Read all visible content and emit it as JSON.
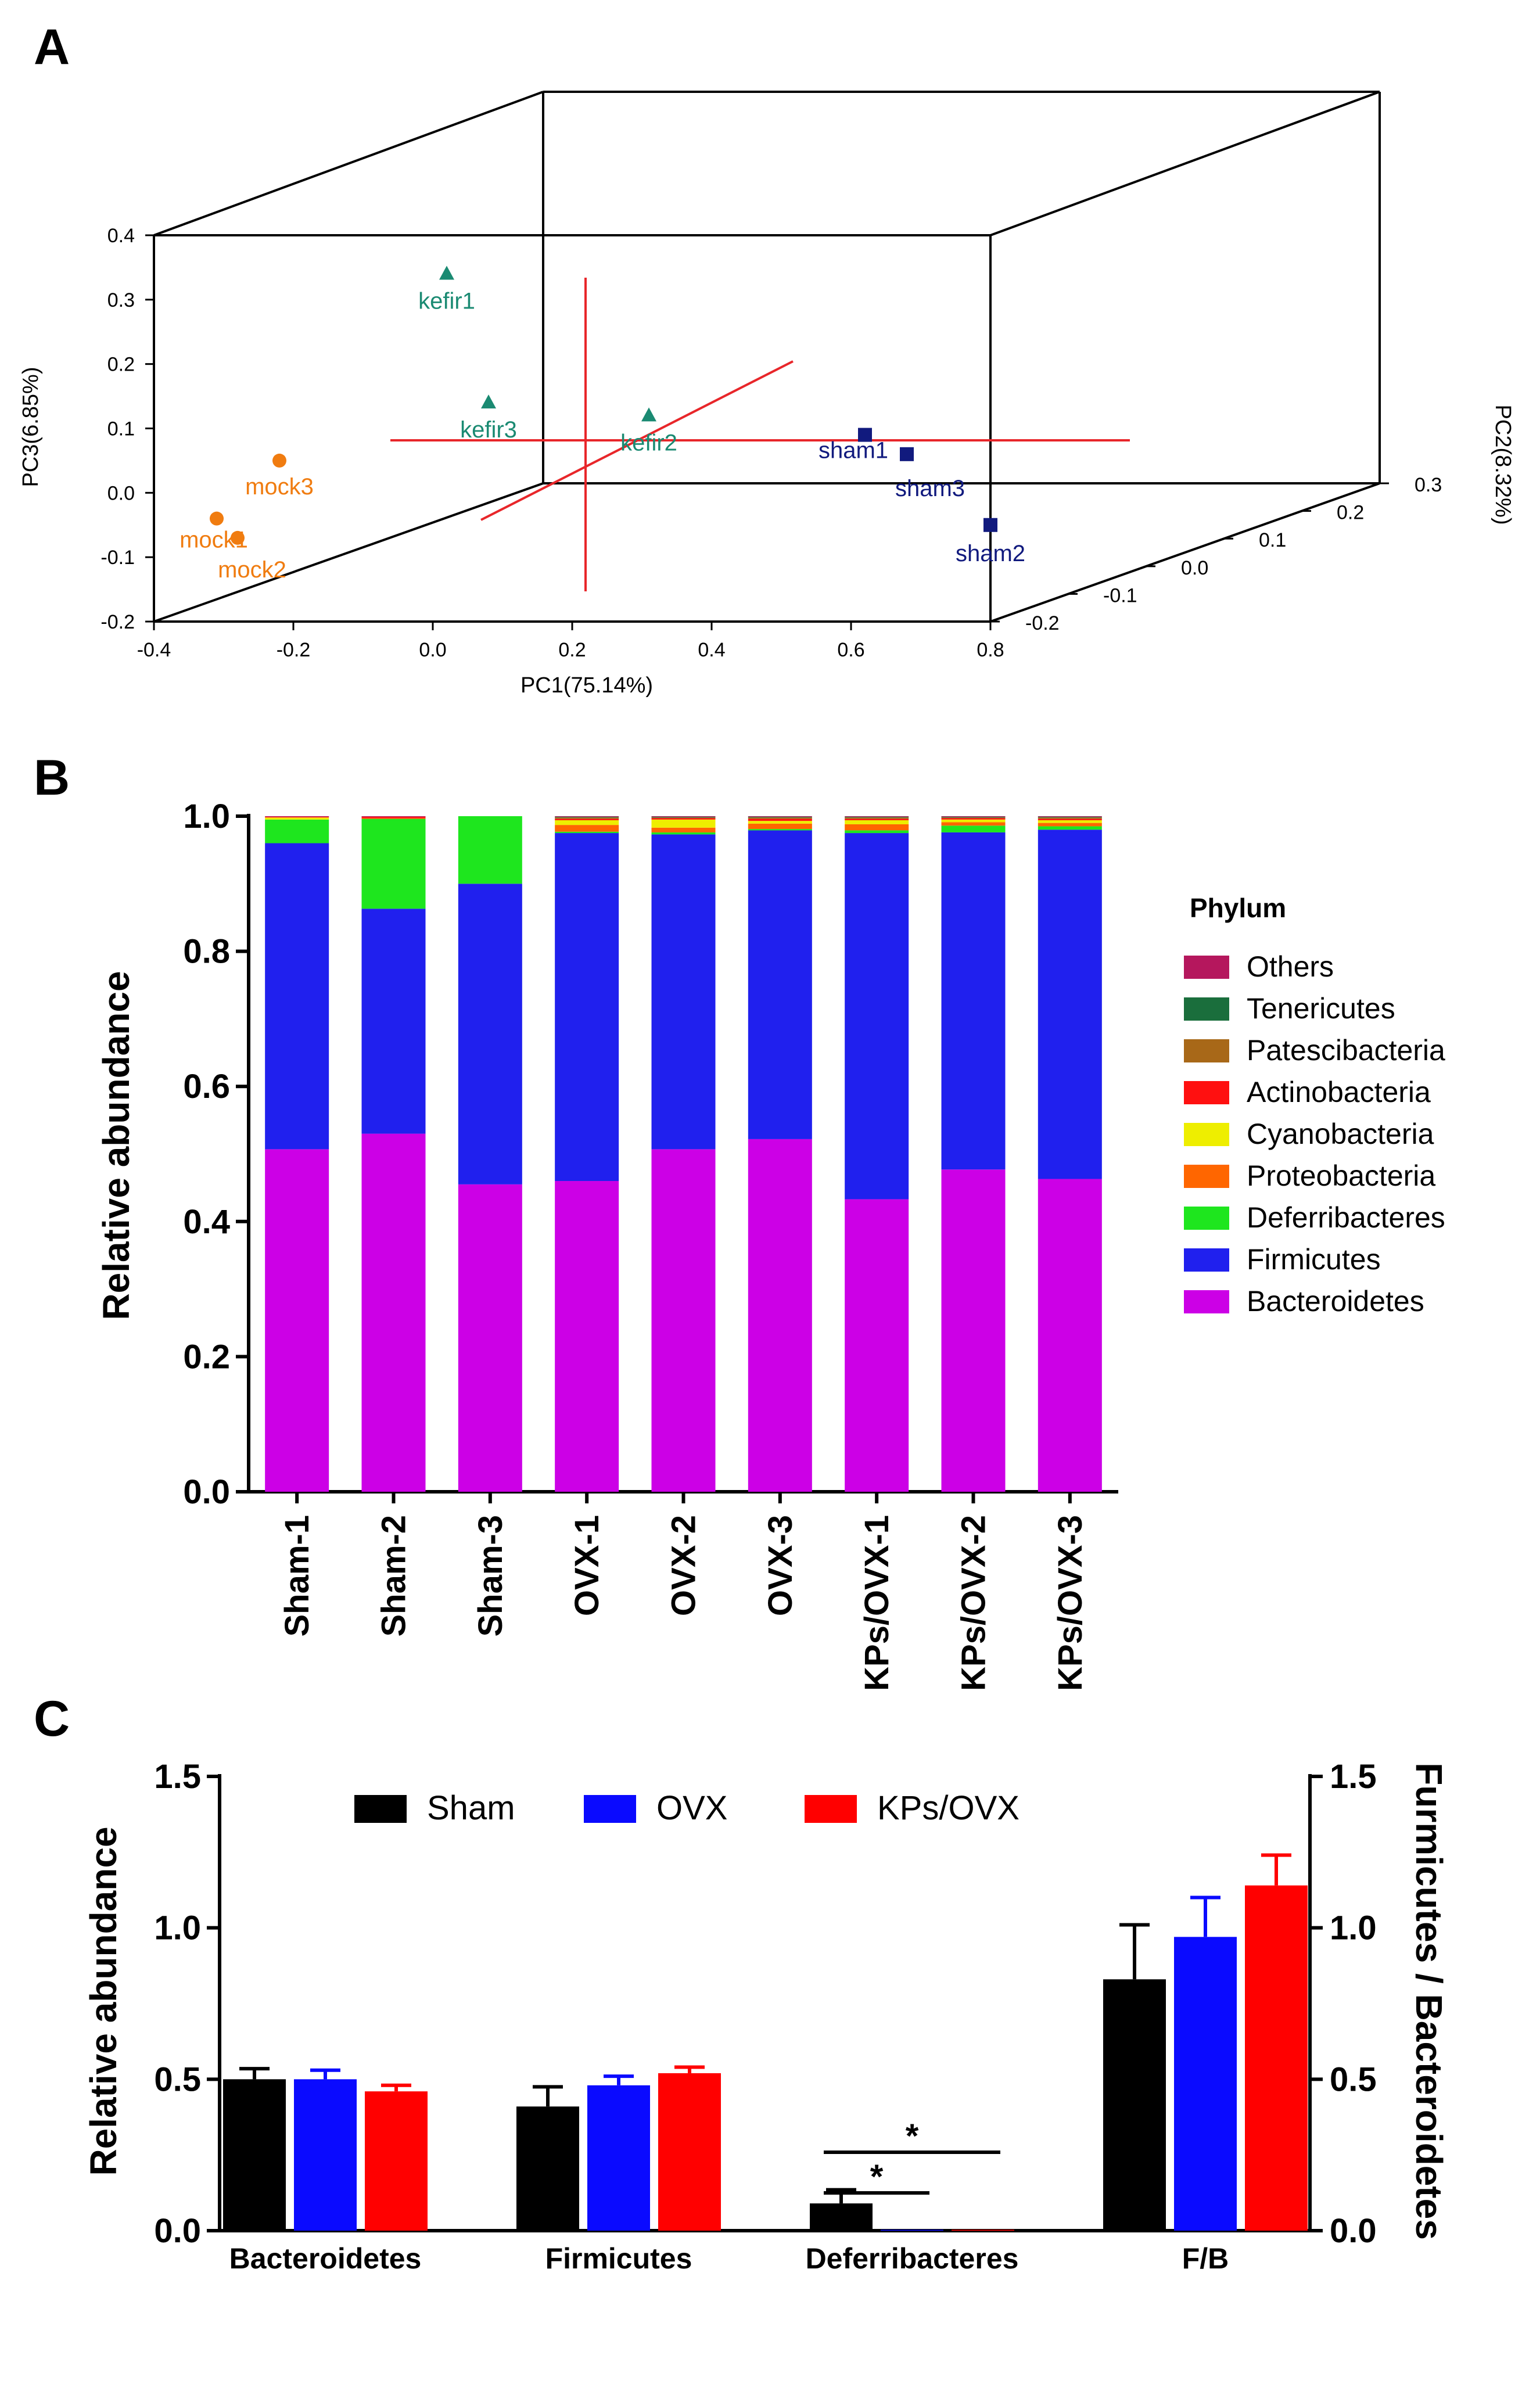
{
  "panels": {
    "a": "A",
    "b": "B",
    "c": "C"
  },
  "colors": {
    "kefir": "#1a8a72",
    "mock": "#f07c10",
    "sham": "#111a7e",
    "axis_red": "#e8262a"
  },
  "chart_data": [
    {
      "type": "scatter",
      "title": "",
      "xlabel": "PC1(75.14%)",
      "ylabel": "PC3(6.85%)",
      "zlabel": "PC2(8.32%)",
      "xticks": [
        "-0.4",
        "-0.2",
        "0.0",
        "0.2",
        "0.4",
        "0.6",
        "0.8"
      ],
      "yticks": [
        "-0.2",
        "-0.1",
        "0.0",
        "0.1",
        "0.2",
        "0.3",
        "0.4"
      ],
      "zticks": [
        "-0.2",
        "-0.1",
        "0.0",
        "0.1",
        "0.2",
        "0.3"
      ],
      "xlim": [
        -0.4,
        0.8
      ],
      "ylim": [
        -0.2,
        0.4
      ],
      "zlim": [
        -0.2,
        0.3
      ],
      "points": [
        {
          "label": "kefir1",
          "group": "kefir",
          "x": 0.02,
          "y": 0.34
        },
        {
          "label": "kefir3",
          "group": "kefir",
          "x": 0.08,
          "y": 0.14
        },
        {
          "label": "kefir2",
          "group": "kefir",
          "x": 0.31,
          "y": 0.12
        },
        {
          "label": "mock3",
          "group": "mock",
          "x": -0.22,
          "y": 0.05
        },
        {
          "label": "mock1",
          "group": "mock",
          "x": -0.31,
          "y": -0.04
        },
        {
          "label": "mock2",
          "group": "mock",
          "x": -0.28,
          "y": -0.07
        },
        {
          "label": "sham1",
          "group": "sham",
          "x": 0.62,
          "y": 0.09
        },
        {
          "label": "sham3",
          "group": "sham",
          "x": 0.68,
          "y": 0.06
        },
        {
          "label": "sham2",
          "group": "sham",
          "x": 0.8,
          "y": -0.05
        }
      ]
    },
    {
      "type": "bar",
      "stacked": true,
      "title": "",
      "xlabel": "",
      "ylabel": "Relative abundance",
      "ylim": [
        0,
        1.0
      ],
      "yticks": [
        "0.0",
        "0.2",
        "0.4",
        "0.6",
        "0.8",
        "1.0"
      ],
      "categories": [
        "Sham-1",
        "Sham-2",
        "Sham-3",
        "OVX-1",
        "OVX-2",
        "OVX-3",
        "KPs/OVX-1",
        "KPs/OVX-2",
        "KPs/OVX-3"
      ],
      "legend_title": "Phylum",
      "legend": [
        "Others",
        "Tenericutes",
        "Patescibacteria",
        "Actinobacteria",
        "Cyanobacteria",
        "Proteobacteria",
        "Deferribacteres",
        "Firmicutes",
        "Bacteroidetes"
      ],
      "series": [
        {
          "name": "Bacteroidetes",
          "color": "#cc00e6",
          "values": [
            0.507,
            0.53,
            0.455,
            0.46,
            0.507,
            0.522,
            0.433,
            0.477,
            0.463
          ]
        },
        {
          "name": "Firmicutes",
          "color": "#2020ee",
          "values": [
            0.453,
            0.333,
            0.445,
            0.515,
            0.466,
            0.457,
            0.542,
            0.499,
            0.517
          ]
        },
        {
          "name": "Deferribacteres",
          "color": "#1ee61e",
          "values": [
            0.035,
            0.133,
            0.1,
            0.002,
            0.003,
            0.002,
            0.004,
            0.01,
            0.005
          ]
        },
        {
          "name": "Proteobacteria",
          "color": "#ff6600",
          "values": [
            0.0,
            0.001,
            0.0,
            0.01,
            0.007,
            0.008,
            0.009,
            0.005,
            0.005
          ]
        },
        {
          "name": "Cyanobacteria",
          "color": "#eeee00",
          "values": [
            0.003,
            0.0,
            0.0,
            0.007,
            0.012,
            0.004,
            0.006,
            0.004,
            0.004
          ]
        },
        {
          "name": "Actinobacteria",
          "color": "#ff1010",
          "values": [
            0.001,
            0.002,
            0.0,
            0.002,
            0.002,
            0.003,
            0.002,
            0.002,
            0.002
          ]
        },
        {
          "name": "Patescibacteria",
          "color": "#a86818",
          "values": [
            0.0,
            0.0,
            0.0,
            0.002,
            0.001,
            0.002,
            0.002,
            0.001,
            0.002
          ]
        },
        {
          "name": "Tenericutes",
          "color": "#1a6e3c",
          "values": [
            0.0,
            0.0,
            0.0,
            0.001,
            0.001,
            0.001,
            0.001,
            0.001,
            0.001
          ]
        },
        {
          "name": "Others",
          "color": "#b5175d",
          "values": [
            0.001,
            0.001,
            0.0,
            0.001,
            0.001,
            0.001,
            0.001,
            0.001,
            0.001
          ]
        }
      ]
    },
    {
      "type": "bar",
      "title": "",
      "xlabel": "",
      "ylabel": "Relative abundance",
      "ylabel_right": "Furmicutes / Bacteroidetes",
      "ylim": [
        0,
        1.5
      ],
      "yticks": [
        "0.0",
        "0.5",
        "1.0",
        "1.5"
      ],
      "categories": [
        "Bacteroidetes",
        "Firmicutes",
        "Deferribacteres",
        "F/B"
      ],
      "series": [
        {
          "name": "Sham",
          "color": "#000000",
          "values": [
            0.5,
            0.41,
            0.09,
            0.83
          ],
          "errors": [
            0.035,
            0.065,
            0.045,
            0.18
          ]
        },
        {
          "name": "OVX",
          "color": "#0a0aff",
          "values": [
            0.5,
            0.48,
            0.003,
            0.97
          ],
          "errors": [
            0.03,
            0.03,
            0.0,
            0.13
          ]
        },
        {
          "name": "KPs/OVX",
          "color": "#ff0000",
          "values": [
            0.46,
            0.52,
            0.003,
            1.14
          ],
          "errors": [
            0.02,
            0.02,
            0.0,
            0.1
          ]
        }
      ],
      "significance": [
        {
          "label": "*",
          "from": "Sham",
          "to": "OVX"
        },
        {
          "label": "*",
          "from": "Sham",
          "to": "KPs/OVX"
        }
      ]
    }
  ]
}
